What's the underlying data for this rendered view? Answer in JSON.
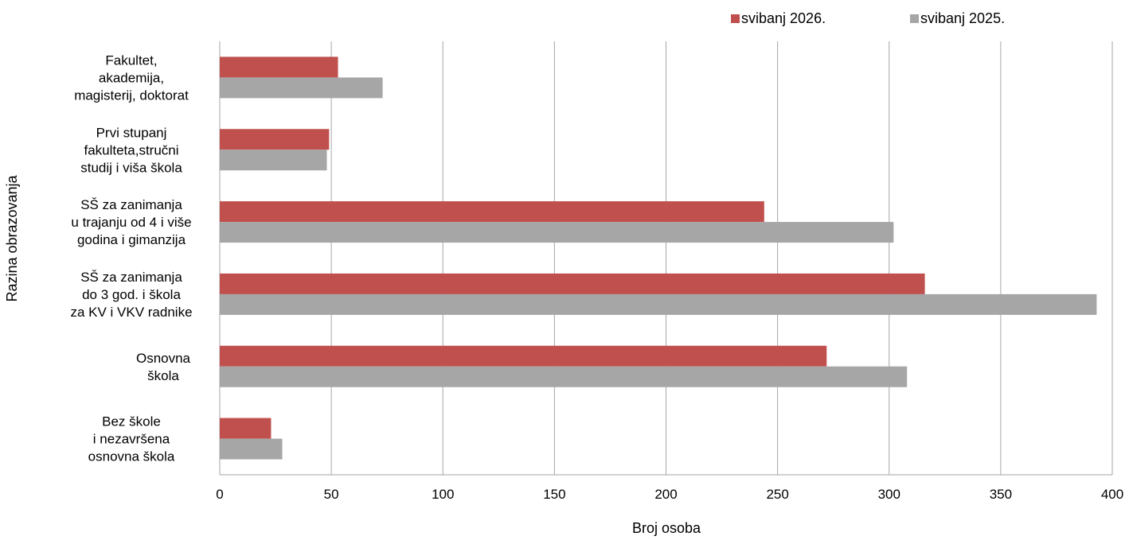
{
  "chart_data": {
    "type": "bar",
    "orientation": "horizontal",
    "categories": [
      [
        "Fakultet,",
        "akademija,",
        "magisterij, doktorat"
      ],
      [
        "Prvi stupanj",
        "fakulteta,stručni",
        "studij i viša škola"
      ],
      [
        "SŠ za zanimanja",
        "u trajanju od 4 i više",
        "godina i gimanzija"
      ],
      [
        "SŠ za zanimanja",
        "do 3 god. i škola",
        "za KV i VKV radnike"
      ],
      [
        "Osnovna",
        "škola"
      ],
      [
        "Bez škole",
        "i nezavršena",
        "osnovna škola"
      ]
    ],
    "series": [
      {
        "name": "svibanj 2026.",
        "color": "#c0504d",
        "values": [
          53,
          49,
          244,
          316,
          272,
          23
        ]
      },
      {
        "name": "svibanj 2025.",
        "color": "#a6a6a6",
        "values": [
          73,
          48,
          302,
          393,
          308,
          28
        ]
      }
    ],
    "xlabel": "Broj osoba",
    "ylabel": "Razina obrazovanja",
    "xlim": [
      0,
      400
    ],
    "xticks": [
      0,
      50,
      100,
      150,
      200,
      250,
      300,
      350,
      400
    ],
    "grid": "vertical",
    "legend_position": "top-right"
  }
}
